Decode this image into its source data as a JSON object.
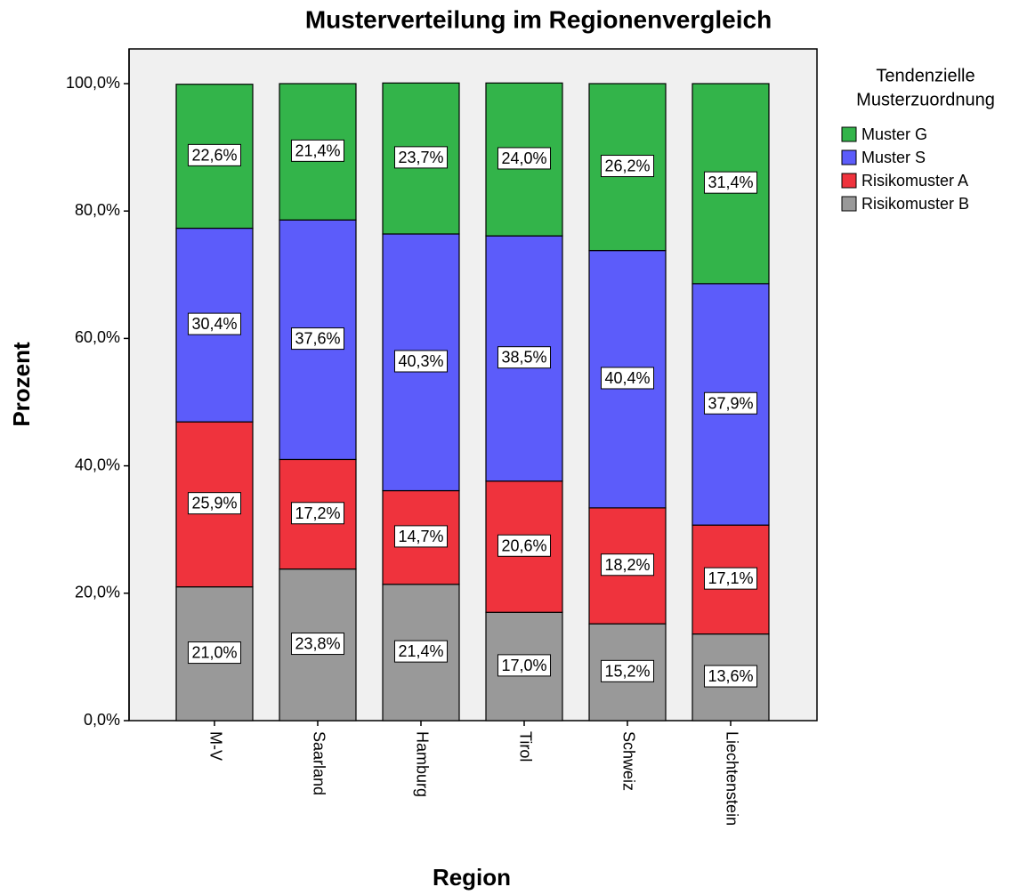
{
  "chart_data": {
    "type": "stacked_bar",
    "title": "Musterverteilung im Regionenvergleich",
    "x_label": "Region",
    "y_label": "Prozent",
    "legend_title": [
      "Tendenzielle",
      "Musterzuordnung"
    ],
    "legend_position": "right",
    "categories": [
      "M-V",
      "Saarland",
      "Hamburg",
      "Tirol",
      "Schweiz",
      "Liechtenstein"
    ],
    "series": [
      {
        "name": "Muster G",
        "color": "#33b44a",
        "values": [
          22.6,
          21.4,
          23.7,
          24.0,
          26.2,
          31.4
        ],
        "value_labels": [
          "22,6%",
          "21,4%",
          "23,7%",
          "24,0%",
          "26,2%",
          "31,4%"
        ]
      },
      {
        "name": "Muster S",
        "color": "#5c5cfa",
        "values": [
          30.4,
          37.6,
          40.3,
          38.5,
          40.4,
          37.9
        ],
        "value_labels": [
          "30,4%",
          "37,6%",
          "40,3%",
          "38,5%",
          "40,4%",
          "37,9%"
        ]
      },
      {
        "name": "Risikomuster A",
        "color": "#ef333d",
        "values": [
          25.9,
          17.2,
          14.7,
          20.6,
          18.2,
          17.1
        ],
        "value_labels": [
          "25,9%",
          "17,2%",
          "14,7%",
          "20,6%",
          "18,2%",
          "17,1%"
        ]
      },
      {
        "name": "Risikomuster B",
        "color": "#999999",
        "values": [
          21.0,
          23.8,
          21.4,
          17.0,
          15.2,
          13.6
        ],
        "value_labels": [
          "21,0%",
          "23,8%",
          "21,4%",
          "17,0%",
          "15,2%",
          "13,6%"
        ]
      }
    ],
    "ylim": [
      0,
      100
    ],
    "yticks": [
      {
        "value": 0,
        "label": "0,0%"
      },
      {
        "value": 20,
        "label": "20,0%"
      },
      {
        "value": 40,
        "label": "40,0%"
      },
      {
        "value": 60,
        "label": "60,0%"
      },
      {
        "value": 80,
        "label": "80,0%"
      },
      {
        "value": 100,
        "label": "100,0%"
      }
    ]
  }
}
